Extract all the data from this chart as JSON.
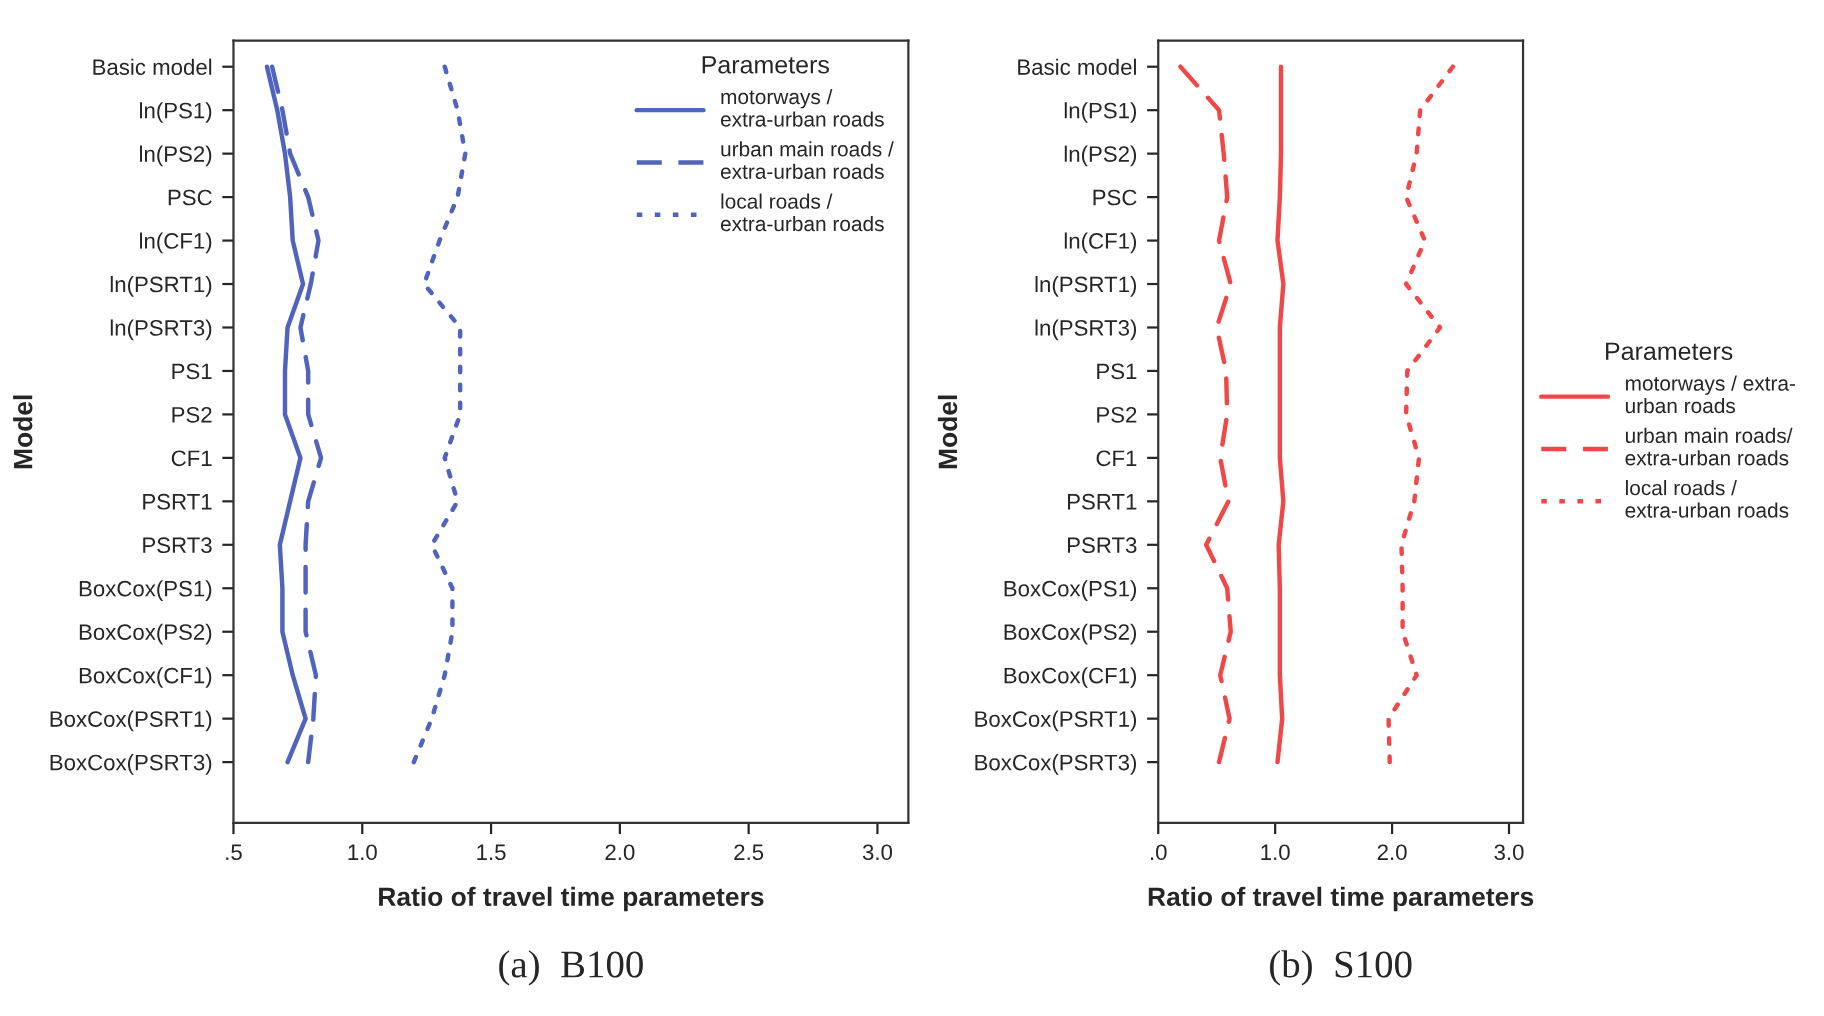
{
  "chart_data": [
    {
      "type": "line",
      "orientation": "horizontal",
      "xlabel": "Ratio of travel time parameters",
      "ylabel": "Model",
      "legend_title": "Parameters",
      "legend": "top right",
      "grid": false,
      "marker": "none",
      "categories": [
        "Basic model",
        "ln(PS1)",
        "ln(PS2)",
        "PSC",
        "ln(CF1)",
        "ln(PSRT1)",
        "ln(PSRT3)",
        "PS1",
        "PS2",
        "CF1",
        "PSRT1",
        "PSRT3",
        "BoxCox(PS1)",
        "BoxCox(PS2)",
        "BoxCox(CF1)",
        "BoxCox(PSRT1)",
        "BoxCox(PSRT3)"
      ],
      "xlim": [
        0.5,
        3.12
      ],
      "xticks": [
        {
          "value": 0.5,
          "label": ".5"
        },
        {
          "value": 1.0,
          "label": "1.0"
        },
        {
          "value": 1.5,
          "label": "1.5"
        },
        {
          "value": 2.0,
          "label": "2.0"
        },
        {
          "value": 2.5,
          "label": "2.5"
        },
        {
          "value": 3.0,
          "label": "3.0"
        }
      ],
      "series": [
        {
          "name": "motorways /\nextra-urban roads",
          "color": "#5063bd",
          "line_style": "solid",
          "values": [
            0.63,
            0.67,
            0.7,
            0.72,
            0.73,
            0.77,
            0.71,
            0.7,
            0.7,
            0.76,
            0.72,
            0.68,
            0.69,
            0.69,
            0.73,
            0.78,
            0.71
          ]
        },
        {
          "name": "urban main roads /\nextra-urban roads",
          "color": "#5063bd",
          "line_style": "dashed",
          "values": [
            0.65,
            0.69,
            0.72,
            0.79,
            0.83,
            0.8,
            0.76,
            0.79,
            0.79,
            0.84,
            0.79,
            0.78,
            0.78,
            0.78,
            0.82,
            0.81,
            0.79
          ]
        },
        {
          "name": "local roads /\nextra-urban roads",
          "color": "#5063bd",
          "line_style": "dotted",
          "values": [
            1.32,
            1.37,
            1.4,
            1.37,
            1.3,
            1.24,
            1.38,
            1.38,
            1.38,
            1.32,
            1.37,
            1.27,
            1.35,
            1.35,
            1.32,
            1.27,
            1.2
          ]
        }
      ],
      "annotations": [
        "(a)  B100"
      ]
    },
    {
      "type": "line",
      "orientation": "horizontal",
      "xlabel": "Ratio of travel time parameters",
      "ylabel": "Model",
      "legend_title": "Parameters",
      "legend": "right",
      "grid": false,
      "marker": "none",
      "categories": [
        "Basic model",
        "ln(PS1)",
        "ln(PS2)",
        "PSC",
        "ln(CF1)",
        "ln(PSRT1)",
        "ln(PSRT3)",
        "PS1",
        "PS2",
        "CF1",
        "PSRT1",
        "PSRT3",
        "BoxCox(PS1)",
        "BoxCox(PS2)",
        "BoxCox(CF1)",
        "BoxCox(PSRT1)",
        "BoxCox(PSRT3)"
      ],
      "xlim": [
        0.0,
        3.12
      ],
      "xticks": [
        {
          "value": 0.0,
          "label": ".0"
        },
        {
          "value": 1.0,
          "label": "1.0"
        },
        {
          "value": 2.0,
          "label": "2.0"
        },
        {
          "value": 3.0,
          "label": "3.0"
        }
      ],
      "series": [
        {
          "name": "motorways / extra-\nurban roads",
          "color": "#f04848",
          "line_style": "solid",
          "values": [
            1.05,
            1.05,
            1.05,
            1.04,
            1.02,
            1.07,
            1.04,
            1.04,
            1.04,
            1.04,
            1.07,
            1.03,
            1.04,
            1.04,
            1.04,
            1.06,
            1.02
          ]
        },
        {
          "name": "urban main roads/\nextra-urban roads",
          "color": "#f04848",
          "line_style": "dashed",
          "values": [
            0.19,
            0.52,
            0.56,
            0.59,
            0.52,
            0.62,
            0.5,
            0.58,
            0.59,
            0.53,
            0.6,
            0.41,
            0.59,
            0.62,
            0.53,
            0.61,
            0.52
          ]
        },
        {
          "name": "local roads /\nextra-urban roads",
          "color": "#f04848",
          "line_style": "dotted",
          "values": [
            2.52,
            2.24,
            2.21,
            2.12,
            2.28,
            2.12,
            2.41,
            2.13,
            2.12,
            2.23,
            2.19,
            2.08,
            2.09,
            2.09,
            2.21,
            1.97,
            1.98
          ]
        }
      ],
      "annotations": [
        "(b)  S100"
      ]
    }
  ]
}
